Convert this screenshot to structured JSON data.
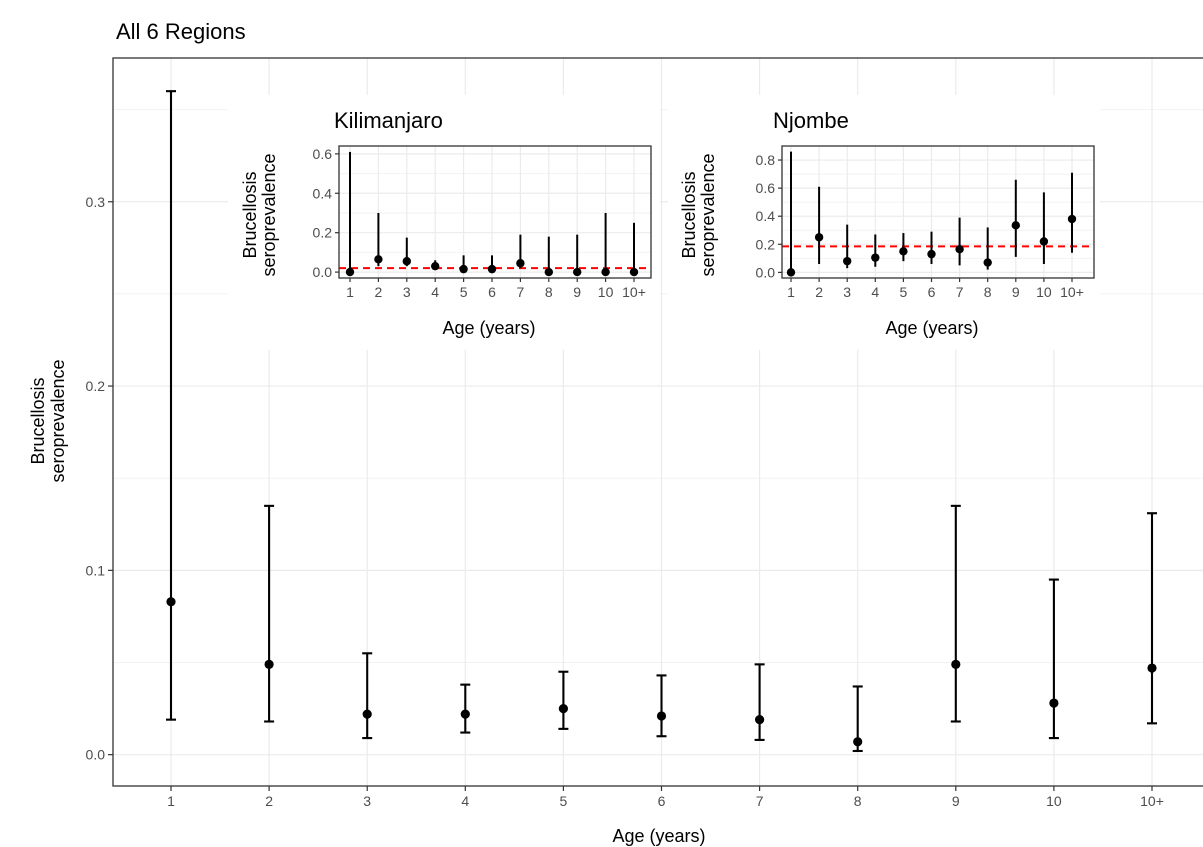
{
  "chart_data": [
    {
      "type": "scatter",
      "title": "All 6 Regions",
      "xlabel": "Age (years)",
      "ylabel": "Brucellosis\nseroprevalence",
      "categories": [
        "1",
        "2",
        "3",
        "4",
        "5",
        "6",
        "7",
        "8",
        "9",
        "10",
        "10+"
      ],
      "values": [
        0.083,
        0.049,
        0.022,
        0.022,
        0.025,
        0.021,
        0.019,
        0.007,
        0.049,
        0.028,
        0.047
      ],
      "lower": [
        0.019,
        0.018,
        0.009,
        0.012,
        0.014,
        0.01,
        0.008,
        0.002,
        0.018,
        0.009,
        0.017
      ],
      "upper": [
        0.36,
        0.135,
        0.055,
        0.038,
        0.045,
        0.043,
        0.049,
        0.037,
        0.135,
        0.095,
        0.131
      ],
      "yticks": [
        0.0,
        0.1,
        0.2,
        0.3
      ],
      "ytick_labels": [
        "0.0",
        "0.1",
        "0.2",
        "0.3"
      ],
      "ylim": [
        -0.017,
        0.378
      ],
      "grid": true,
      "legend": "none"
    },
    {
      "type": "scatter",
      "title": "Kilimanjaro",
      "xlabel": "Age (years)",
      "ylabel": "Brucellosis\nseroprevalence",
      "categories": [
        "1",
        "2",
        "3",
        "4",
        "5",
        "6",
        "7",
        "8",
        "9",
        "10",
        "10+"
      ],
      "values": [
        0.0,
        0.065,
        0.055,
        0.03,
        0.015,
        0.015,
        0.045,
        0.0,
        0.0,
        0.0,
        0.0
      ],
      "lower": [
        0.0,
        0.03,
        0.03,
        0.018,
        0.005,
        0.005,
        0.02,
        0.0,
        0.0,
        0.0,
        0.0
      ],
      "upper": [
        0.61,
        0.3,
        0.175,
        0.06,
        0.085,
        0.085,
        0.19,
        0.18,
        0.19,
        0.3,
        0.25
      ],
      "reference_line": 0.02,
      "reference_color": "#ff0000",
      "yticks": [
        0.0,
        0.2,
        0.4,
        0.6
      ],
      "ytick_labels": [
        "0.0",
        "0.2",
        "0.4",
        "0.6"
      ],
      "ylim": [
        -0.03,
        0.64
      ],
      "grid": true,
      "legend": "none"
    },
    {
      "type": "scatter",
      "title": "Njombe",
      "xlabel": "Age (years)",
      "ylabel": "Brucellosis\nseroprevalence",
      "categories": [
        "1",
        "2",
        "3",
        "4",
        "5",
        "6",
        "7",
        "8",
        "9",
        "10",
        "10+"
      ],
      "values": [
        0.0,
        0.25,
        0.08,
        0.105,
        0.15,
        0.13,
        0.165,
        0.07,
        0.335,
        0.22,
        0.38
      ],
      "lower": [
        0.0,
        0.06,
        0.03,
        0.04,
        0.08,
        0.06,
        0.05,
        0.02,
        0.11,
        0.06,
        0.14
      ],
      "upper": [
        0.86,
        0.61,
        0.34,
        0.27,
        0.28,
        0.29,
        0.39,
        0.32,
        0.66,
        0.57,
        0.71
      ],
      "reference_line": 0.185,
      "reference_color": "#ff0000",
      "yticks": [
        0.0,
        0.2,
        0.4,
        0.6,
        0.8
      ],
      "ytick_labels": [
        "0.0",
        "0.2",
        "0.4",
        "0.6",
        "0.8"
      ],
      "ylim": [
        -0.04,
        0.9
      ],
      "grid": true,
      "legend": "none"
    }
  ]
}
